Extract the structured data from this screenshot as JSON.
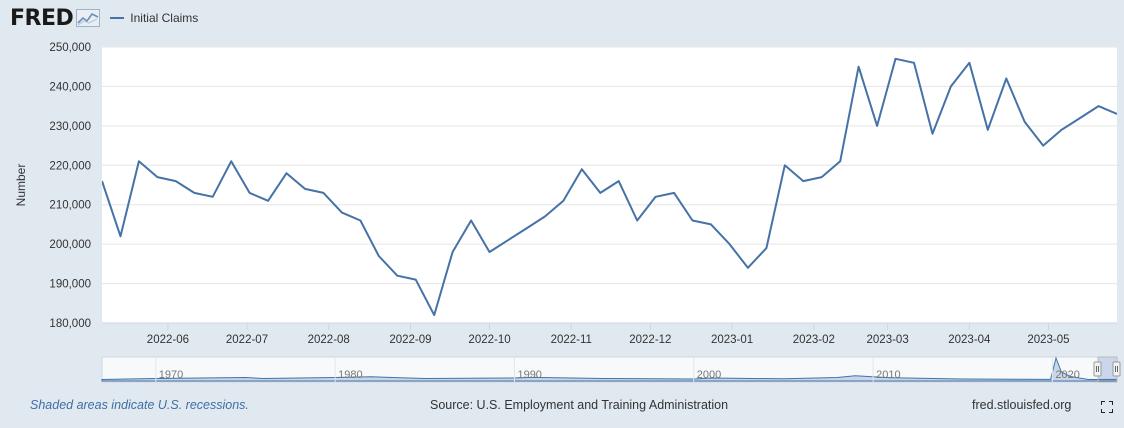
{
  "header": {
    "logo_text": "FRED",
    "logo_icon": "chart-line-icon"
  },
  "footer": {
    "note": "Shaded areas indicate U.S. recessions.",
    "source": "Source: U.S. Employment and Training Administration",
    "site": "fred.stlouisfed.org",
    "fullscreen_icon": "fullscreen-icon"
  },
  "colors": {
    "series": "#4572a7",
    "background": "#e1e9f0",
    "plot": "#ffffff",
    "grid": "#e6e6e6"
  },
  "chart_data": {
    "type": "line",
    "title": "",
    "xlabel": "",
    "ylabel": "Number",
    "grid": true,
    "legend_placement": "top-left",
    "ylim": [
      180000,
      250000
    ],
    "yticks": [
      180000,
      190000,
      200000,
      210000,
      220000,
      230000,
      240000,
      250000
    ],
    "ytick_labels": [
      "180,000",
      "190,000",
      "200,000",
      "210,000",
      "220,000",
      "230,000",
      "240,000",
      "250,000"
    ],
    "xlim": [
      "2022-05-07",
      "2023-05-27"
    ],
    "xticks": [
      "2022-06-01",
      "2022-07-01",
      "2022-08-01",
      "2022-09-01",
      "2022-10-01",
      "2022-11-01",
      "2022-12-01",
      "2023-01-01",
      "2023-02-01",
      "2023-03-01",
      "2023-04-01",
      "2023-05-01"
    ],
    "xtick_labels": [
      "2022-06",
      "2022-07",
      "2022-08",
      "2022-09",
      "2022-10",
      "2022-11",
      "2022-12",
      "2023-01",
      "2023-02",
      "2023-03",
      "2023-04",
      "2023-05"
    ],
    "series": [
      {
        "name": "Initial Claims",
        "x": [
          "2022-05-07",
          "2022-05-14",
          "2022-05-21",
          "2022-05-28",
          "2022-06-04",
          "2022-06-11",
          "2022-06-18",
          "2022-06-25",
          "2022-07-02",
          "2022-07-09",
          "2022-07-16",
          "2022-07-23",
          "2022-07-30",
          "2022-08-06",
          "2022-08-13",
          "2022-08-20",
          "2022-08-27",
          "2022-09-03",
          "2022-09-10",
          "2022-09-17",
          "2022-09-24",
          "2022-10-01",
          "2022-10-08",
          "2022-10-15",
          "2022-10-22",
          "2022-10-29",
          "2022-11-05",
          "2022-11-12",
          "2022-11-19",
          "2022-11-26",
          "2022-12-03",
          "2022-12-10",
          "2022-12-17",
          "2022-12-24",
          "2022-12-31",
          "2023-01-07",
          "2023-01-14",
          "2023-01-21",
          "2023-01-28",
          "2023-02-04",
          "2023-02-11",
          "2023-02-18",
          "2023-02-25",
          "2023-03-04",
          "2023-03-11",
          "2023-03-18",
          "2023-03-25",
          "2023-04-01",
          "2023-04-08",
          "2023-04-15",
          "2023-04-22",
          "2023-04-29",
          "2023-05-06",
          "2023-05-13",
          "2023-05-20",
          "2023-05-27"
        ],
        "y": [
          216000,
          202000,
          221000,
          217000,
          216000,
          213000,
          212000,
          221000,
          213000,
          211000,
          218000,
          214000,
          213000,
          208000,
          206000,
          197000,
          192000,
          191000,
          182000,
          198000,
          206000,
          198000,
          201000,
          204000,
          207000,
          211000,
          219000,
          213000,
          216000,
          206000,
          212000,
          213000,
          206000,
          205000,
          200000,
          194000,
          199000,
          220000,
          216000,
          217000,
          221000,
          245000,
          230000,
          247000,
          246000,
          228000,
          240000,
          246000,
          229000,
          242000,
          231000,
          225000,
          229000,
          232000,
          235000,
          233000
        ]
      }
    ],
    "navigator": {
      "labels": [
        "1970",
        "1980",
        "1990",
        "2000",
        "2010",
        "2020"
      ],
      "label_years": [
        1970,
        1980,
        1990,
        2000,
        2010,
        2020
      ],
      "range": [
        1967,
        2023.6
      ]
    }
  }
}
